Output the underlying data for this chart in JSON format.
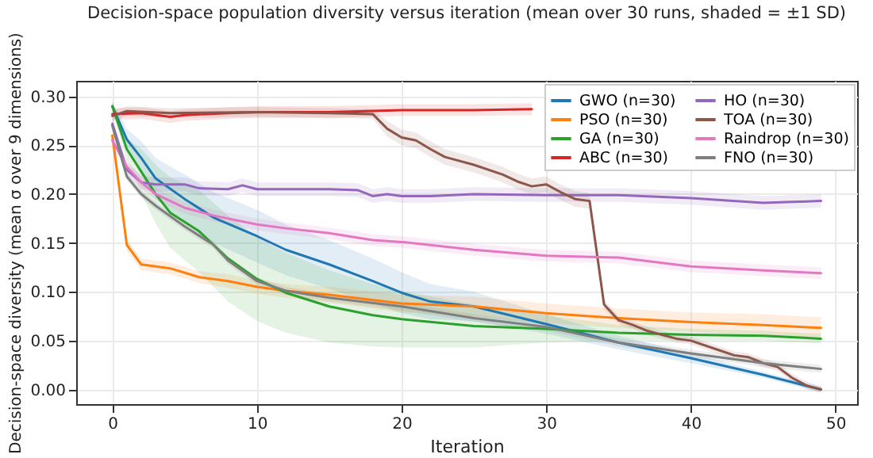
{
  "chart_data": {
    "type": "line",
    "title": "Decision-space population diversity versus iteration (mean over 30 runs, shaded = ±1 SD)",
    "xlabel": "Iteration",
    "ylabel": "Decision-space diversity (mean σ over 9 dimensions)",
    "xlim": [
      -2.5,
      51.5
    ],
    "xticks": [
      0,
      10,
      20,
      30,
      40,
      50
    ],
    "ylim": [
      -0.015,
      0.316
    ],
    "yticks": [
      {
        "value": 0,
        "label": "0.00"
      },
      {
        "value": 0.05,
        "label": "0.05"
      },
      {
        "value": 0.1,
        "label": "0.10"
      },
      {
        "value": 0.15,
        "label": "0.15"
      },
      {
        "value": 0.2,
        "label": "0.20"
      },
      {
        "value": 0.25,
        "label": "0.25"
      },
      {
        "value": 0.3,
        "label": "0.30"
      }
    ],
    "grid": true,
    "legend": "top right",
    "line_style": "solid",
    "series": [
      {
        "name": "GWO (n=30)",
        "color": "#1f77b4",
        "x": [
          0,
          1,
          2,
          3,
          5,
          7,
          10,
          12,
          15,
          18,
          20,
          22,
          25,
          30,
          35,
          40,
          45,
          49
        ],
        "values": [
          0.29,
          0.256,
          0.237,
          0.216,
          0.195,
          0.176,
          0.157,
          0.143,
          0.128,
          0.111,
          0.099,
          0.09,
          0.085,
          0.067,
          0.048,
          0.032,
          0.015,
          0.0
        ],
        "lower": [
          0.285,
          0.245,
          0.22,
          0.195,
          0.17,
          0.15,
          0.13,
          0.117,
          0.103,
          0.088,
          0.078,
          0.072,
          0.07,
          0.057,
          0.041,
          0.027,
          0.012,
          -0.003
        ],
        "upper": [
          0.295,
          0.267,
          0.254,
          0.237,
          0.22,
          0.202,
          0.184,
          0.169,
          0.153,
          0.134,
          0.12,
          0.108,
          0.1,
          0.077,
          0.055,
          0.037,
          0.018,
          0.003
        ]
      },
      {
        "name": "PSO (n=30)",
        "color": "#ff7f0e",
        "x": [
          0,
          1,
          2,
          4,
          6,
          8,
          10,
          12,
          15,
          20,
          25,
          30,
          35,
          40,
          45,
          49
        ],
        "values": [
          0.26,
          0.148,
          0.128,
          0.124,
          0.115,
          0.111,
          0.105,
          0.101,
          0.097,
          0.088,
          0.085,
          0.078,
          0.073,
          0.069,
          0.066,
          0.063
        ],
        "lower": [
          0.255,
          0.142,
          0.122,
          0.118,
          0.109,
          0.104,
          0.098,
          0.094,
          0.089,
          0.079,
          0.075,
          0.068,
          0.063,
          0.059,
          0.055,
          0.052
        ],
        "upper": [
          0.265,
          0.154,
          0.134,
          0.13,
          0.121,
          0.118,
          0.112,
          0.108,
          0.105,
          0.097,
          0.095,
          0.088,
          0.083,
          0.079,
          0.077,
          0.074
        ]
      },
      {
        "name": "GA (n=30)",
        "color": "#2ca02c",
        "x": [
          0,
          1,
          2,
          3,
          4,
          6,
          8,
          10,
          12,
          15,
          18,
          20,
          25,
          30,
          35,
          40,
          45,
          49
        ],
        "values": [
          0.29,
          0.246,
          0.223,
          0.2,
          0.181,
          0.162,
          0.134,
          0.113,
          0.099,
          0.085,
          0.076,
          0.072,
          0.065,
          0.062,
          0.058,
          0.056,
          0.055,
          0.052
        ],
        "lower": [
          0.285,
          0.235,
          0.2,
          0.17,
          0.145,
          0.12,
          0.09,
          0.07,
          0.058,
          0.048,
          0.044,
          0.043,
          0.043,
          0.048,
          0.05,
          0.05,
          0.05,
          0.047
        ],
        "upper": [
          0.295,
          0.257,
          0.246,
          0.23,
          0.217,
          0.204,
          0.178,
          0.156,
          0.14,
          0.122,
          0.108,
          0.101,
          0.087,
          0.076,
          0.066,
          0.062,
          0.06,
          0.057
        ]
      },
      {
        "name": "ABC (n=30)",
        "color": "#d62728",
        "x": [
          0,
          2,
          4,
          5,
          8,
          10,
          15,
          20,
          25,
          29
        ],
        "values": [
          0.282,
          0.283,
          0.279,
          0.281,
          0.283,
          0.284,
          0.284,
          0.286,
          0.286,
          0.287
        ],
        "lower": [
          0.276,
          0.277,
          0.273,
          0.275,
          0.277,
          0.278,
          0.278,
          0.28,
          0.28,
          0.281
        ],
        "upper": [
          0.288,
          0.289,
          0.285,
          0.287,
          0.289,
          0.29,
          0.29,
          0.292,
          0.292,
          0.293
        ]
      },
      {
        "name": "HO (n=30)",
        "color": "#9467bd",
        "x": [
          0,
          1,
          2,
          3,
          5,
          6,
          8,
          9,
          10,
          12,
          15,
          17,
          18,
          19,
          20,
          22,
          25,
          30,
          35,
          40,
          45,
          47,
          49
        ],
        "values": [
          0.272,
          0.225,
          0.212,
          0.21,
          0.21,
          0.206,
          0.205,
          0.209,
          0.205,
          0.205,
          0.205,
          0.204,
          0.198,
          0.2,
          0.198,
          0.198,
          0.2,
          0.199,
          0.199,
          0.196,
          0.191,
          0.192,
          0.193
        ],
        "lower": [
          0.265,
          0.218,
          0.205,
          0.203,
          0.203,
          0.199,
          0.198,
          0.202,
          0.198,
          0.198,
          0.198,
          0.197,
          0.191,
          0.193,
          0.191,
          0.191,
          0.193,
          0.192,
          0.192,
          0.189,
          0.184,
          0.185,
          0.186
        ],
        "upper": [
          0.279,
          0.232,
          0.219,
          0.217,
          0.217,
          0.213,
          0.212,
          0.216,
          0.212,
          0.212,
          0.212,
          0.211,
          0.205,
          0.207,
          0.205,
          0.205,
          0.207,
          0.206,
          0.206,
          0.203,
          0.198,
          0.199,
          0.2
        ]
      },
      {
        "name": "TOA (n=30)",
        "color": "#8c564b",
        "x": [
          0,
          1,
          4,
          10,
          15,
          18,
          19,
          20,
          21,
          22,
          23,
          25,
          27,
          28,
          29,
          30,
          31,
          32,
          33,
          34,
          35,
          36,
          37,
          38,
          39,
          40,
          42,
          43,
          44,
          45,
          46,
          47,
          48,
          49
        ],
        "values": [
          0.28,
          0.285,
          0.283,
          0.284,
          0.283,
          0.282,
          0.267,
          0.258,
          0.255,
          0.246,
          0.238,
          0.23,
          0.22,
          0.213,
          0.208,
          0.21,
          0.202,
          0.195,
          0.193,
          0.087,
          0.071,
          0.066,
          0.06,
          0.056,
          0.052,
          0.05,
          0.04,
          0.035,
          0.033,
          0.027,
          0.023,
          0.012,
          0.004,
          0.0
        ],
        "lower": [
          0.275,
          0.28,
          0.278,
          0.279,
          0.278,
          0.277,
          0.259,
          0.25,
          0.247,
          0.238,
          0.23,
          0.222,
          0.212,
          0.205,
          0.2,
          0.202,
          0.194,
          0.187,
          0.185,
          0.082,
          0.067,
          0.062,
          0.056,
          0.052,
          0.048,
          0.046,
          0.036,
          0.031,
          0.029,
          0.023,
          0.019,
          0.008,
          0.0,
          -0.003
        ],
        "upper": [
          0.285,
          0.29,
          0.288,
          0.289,
          0.288,
          0.287,
          0.275,
          0.266,
          0.263,
          0.254,
          0.246,
          0.238,
          0.228,
          0.221,
          0.216,
          0.218,
          0.21,
          0.203,
          0.201,
          0.092,
          0.075,
          0.07,
          0.064,
          0.06,
          0.056,
          0.054,
          0.044,
          0.039,
          0.037,
          0.031,
          0.027,
          0.016,
          0.008,
          0.003
        ]
      },
      {
        "name": "Raindrop (n=30)",
        "color": "#e377c2",
        "x": [
          0,
          1,
          2,
          3,
          5,
          7,
          10,
          12,
          15,
          18,
          20,
          25,
          30,
          35,
          40,
          45,
          49
        ],
        "values": [
          0.255,
          0.228,
          0.212,
          0.2,
          0.186,
          0.178,
          0.169,
          0.165,
          0.16,
          0.153,
          0.151,
          0.143,
          0.137,
          0.135,
          0.126,
          0.122,
          0.119
        ],
        "lower": [
          0.249,
          0.222,
          0.206,
          0.194,
          0.18,
          0.172,
          0.163,
          0.159,
          0.154,
          0.147,
          0.145,
          0.137,
          0.131,
          0.129,
          0.12,
          0.116,
          0.113
        ],
        "upper": [
          0.261,
          0.234,
          0.218,
          0.206,
          0.192,
          0.184,
          0.175,
          0.171,
          0.166,
          0.159,
          0.157,
          0.149,
          0.143,
          0.141,
          0.132,
          0.128,
          0.125
        ]
      },
      {
        "name": "FNO (n=30)",
        "color": "#7f7f7f",
        "x": [
          0,
          1,
          2,
          3,
          5,
          7,
          8,
          10,
          12,
          15,
          20,
          25,
          30,
          35,
          40,
          45,
          49
        ],
        "values": [
          0.27,
          0.218,
          0.2,
          0.188,
          0.167,
          0.148,
          0.132,
          0.111,
          0.101,
          0.094,
          0.085,
          0.073,
          0.064,
          0.048,
          0.037,
          0.027,
          0.021
        ],
        "lower": [
          0.266,
          0.214,
          0.196,
          0.184,
          0.163,
          0.144,
          0.128,
          0.107,
          0.097,
          0.09,
          0.081,
          0.069,
          0.06,
          0.044,
          0.033,
          0.023,
          0.017
        ],
        "upper": [
          0.274,
          0.222,
          0.204,
          0.192,
          0.171,
          0.152,
          0.136,
          0.115,
          0.105,
          0.098,
          0.089,
          0.077,
          0.068,
          0.052,
          0.041,
          0.031,
          0.025
        ]
      }
    ]
  }
}
